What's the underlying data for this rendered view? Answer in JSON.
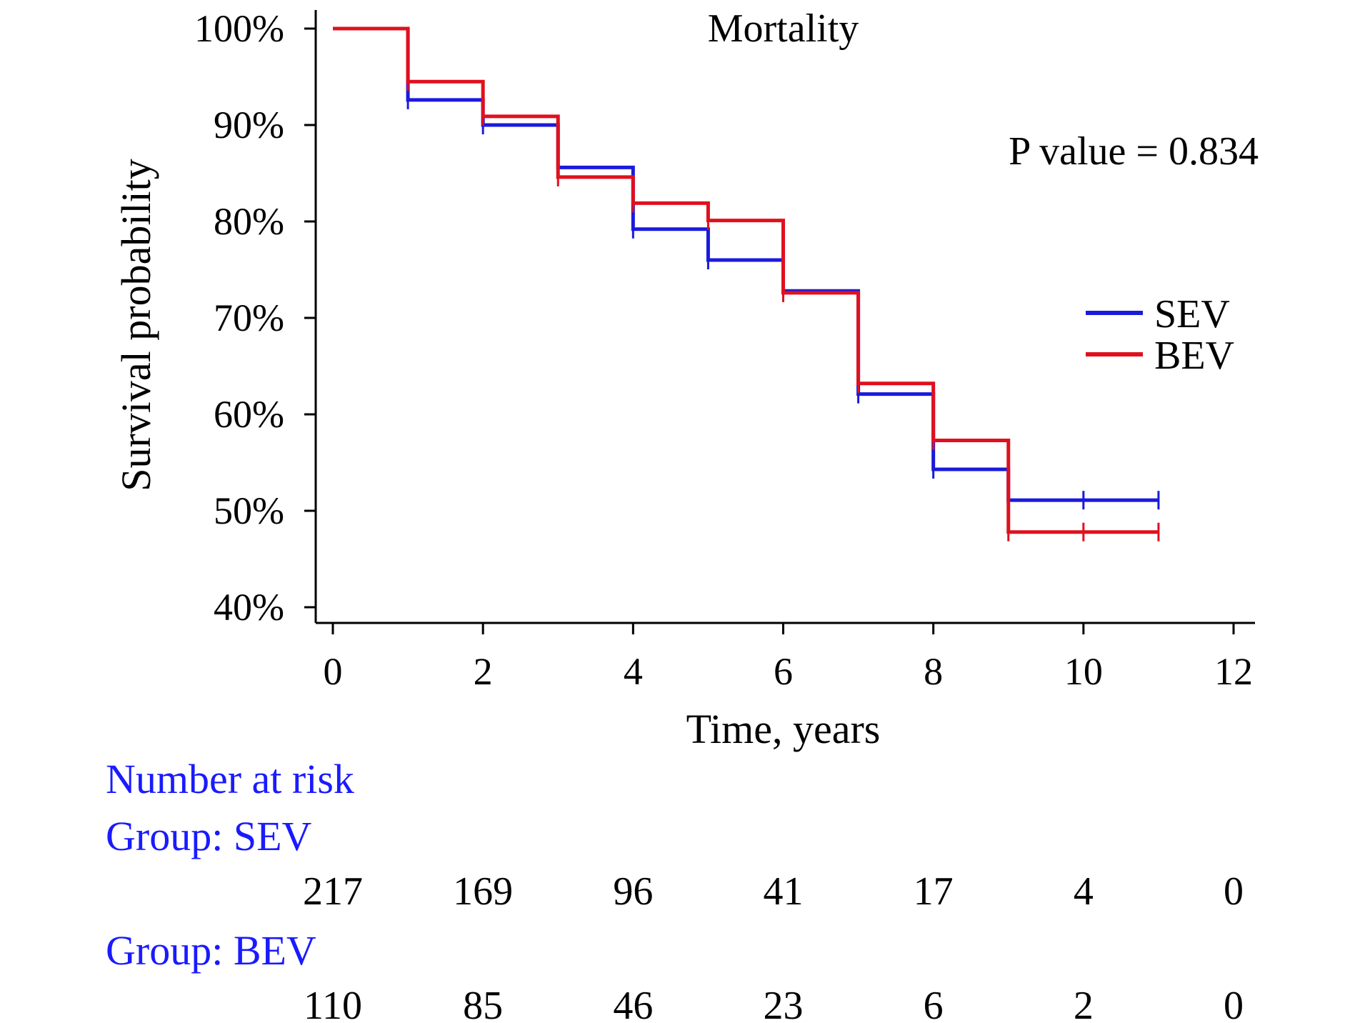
{
  "chart_data": {
    "type": "line",
    "step": true,
    "title": "Mortality",
    "xlabel": "Time, years",
    "ylabel": "Survival probability",
    "xlim": [
      0,
      12
    ],
    "ylim": [
      40,
      100
    ],
    "x_ticks": [
      0,
      2,
      4,
      6,
      8,
      10,
      12
    ],
    "x_tick_labels": [
      "0",
      "2",
      "4",
      "6",
      "8",
      "10",
      "12"
    ],
    "y_ticks": [
      40,
      50,
      60,
      70,
      80,
      90,
      100
    ],
    "y_tick_labels": [
      "40%",
      "50%",
      "60%",
      "70%",
      "80%",
      "90%",
      "100%"
    ],
    "grid": false,
    "legend_position": "right",
    "annotation": "P value = 0.834",
    "series": [
      {
        "name": "SEV",
        "color": "#1a1adc",
        "x": [
          0,
          1,
          2,
          3,
          4,
          5,
          6,
          7,
          8,
          9,
          11
        ],
        "y": [
          100,
          92.6,
          90,
          85.6,
          79.2,
          76,
          72.8,
          62.1,
          54.3,
          51.1,
          51.1
        ],
        "censor_x": [
          1,
          2,
          3,
          4,
          5,
          6,
          7,
          8,
          9,
          10,
          11
        ]
      },
      {
        "name": "BEV",
        "color": "#e0101e",
        "x": [
          0,
          1,
          2,
          3,
          4,
          5,
          6,
          7,
          8,
          9,
          11
        ],
        "y": [
          100,
          94.5,
          90.9,
          84.6,
          81.9,
          80.1,
          72.6,
          63.2,
          57.3,
          47.8,
          47.8
        ],
        "censor_x": [
          1,
          2,
          3,
          4,
          5,
          6,
          7,
          8,
          9,
          10,
          11
        ]
      }
    ],
    "risk_table": {
      "title": "Number at risk",
      "time_points": [
        0,
        2,
        4,
        6,
        8,
        10,
        12
      ],
      "groups": [
        {
          "label": "Group: SEV",
          "values": [
            "217",
            "169",
            "96",
            "41",
            "17",
            "4",
            "0"
          ]
        },
        {
          "label": "Group: BEV",
          "values": [
            "110",
            "85",
            "46",
            "23",
            "6",
            "2",
            "0"
          ]
        }
      ]
    }
  }
}
